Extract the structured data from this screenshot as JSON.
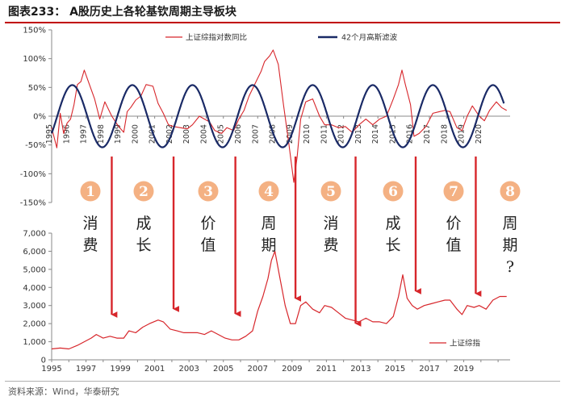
{
  "title": "图表233：  A股历史上各轮基钦周期主导板块",
  "source": "资料来源：Wind，华泰研究",
  "colors": {
    "red": "#d7262b",
    "navy": "#1a2a66",
    "badge": "#f4b183",
    "axis": "#888888"
  },
  "chart_data": [
    {
      "type": "line",
      "panel": "top",
      "y_unit": "%",
      "ylim": [
        -150,
        150
      ],
      "yticks": [
        150,
        100,
        50,
        0,
        -50,
        -100,
        -150
      ],
      "ytick_labels": [
        "150%",
        "100%",
        "50%",
        "0%",
        "-50%",
        "-100%",
        "-150%"
      ],
      "xlim": [
        1995,
        2021.7
      ],
      "xtick_labels": [
        "1995",
        "1996",
        "1997",
        "1998",
        "1999",
        "2000",
        "2001",
        "2002",
        "2003",
        "2004",
        "2005",
        "2006",
        "2007",
        "2008",
        "2009",
        "2010",
        "2011",
        "2012",
        "2013",
        "2014",
        "2015",
        "2016",
        "2017",
        "2018",
        "2019",
        "2020"
      ],
      "legend": [
        {
          "label": "上证综指对数同比",
          "color": "#d7262b",
          "style": "thin"
        },
        {
          "label": "42个月高斯滤波",
          "color": "#1a2a66",
          "style": "thick"
        }
      ],
      "series": [
        {
          "name": "上证综指对数同比",
          "x": [
            1995.0,
            1995.3,
            1995.5,
            1995.7,
            1995.9,
            1996.1,
            1996.3,
            1996.5,
            1996.7,
            1996.9,
            1997.2,
            1997.5,
            1997.8,
            1998.1,
            1998.5,
            1998.9,
            1999.2,
            1999.4,
            1999.6,
            1999.9,
            2000.2,
            2000.5,
            2000.9,
            2001.2,
            2001.5,
            2001.8,
            2002.1,
            2002.5,
            2002.9,
            2003.2,
            2003.6,
            2003.9,
            2004.2,
            2004.5,
            2004.9,
            2005.2,
            2005.6,
            2005.9,
            2006.2,
            2006.5,
            2006.9,
            2007.2,
            2007.4,
            2007.7,
            2007.9,
            2008.2,
            2008.5,
            2008.8,
            2009.1,
            2009.3,
            2009.5,
            2009.8,
            2010.2,
            2010.6,
            2010.9,
            2011.3,
            2011.7,
            2012.1,
            2012.5,
            2012.9,
            2013.3,
            2013.7,
            2014.1,
            2014.5,
            2014.9,
            2015.2,
            2015.4,
            2015.6,
            2015.9,
            2016.1,
            2016.4,
            2016.8,
            2017.2,
            2017.6,
            2017.9,
            2018.2,
            2018.6,
            2018.9,
            2019.2,
            2019.5,
            2019.9,
            2020.2,
            2020.5,
            2020.9,
            2021.2,
            2021.5
          ],
          "y": [
            -20,
            -55,
            5,
            -30,
            -12,
            -5,
            20,
            55,
            60,
            80,
            55,
            30,
            -5,
            25,
            0,
            -18,
            -28,
            8,
            15,
            28,
            35,
            55,
            52,
            22,
            5,
            -15,
            -18,
            -20,
            -22,
            -15,
            0,
            -5,
            -10,
            -25,
            -30,
            -20,
            -25,
            -5,
            10,
            35,
            60,
            78,
            95,
            105,
            115,
            90,
            20,
            -45,
            -115,
            -70,
            -5,
            25,
            30,
            0,
            -15,
            -15,
            -20,
            -18,
            -28,
            -15,
            -5,
            -15,
            -5,
            0,
            30,
            55,
            80,
            55,
            20,
            -35,
            -30,
            -18,
            5,
            8,
            10,
            8,
            -20,
            -25,
            0,
            18,
            0,
            -8,
            10,
            25,
            15,
            10
          ]
        },
        {
          "name": "42个月高斯滤波",
          "amplitude": 54,
          "period_years": 3.5,
          "phase_peak_year": 1999.7
        }
      ]
    },
    {
      "type": "line",
      "panel": "bottom",
      "ylim": [
        0,
        7000
      ],
      "yticks": [
        0,
        1000,
        2000,
        3000,
        4000,
        5000,
        6000,
        7000
      ],
      "ytick_labels": [
        "0",
        "1,000",
        "2,000",
        "3,000",
        "4,000",
        "5,000",
        "6,000",
        "7,000"
      ],
      "xlim": [
        1995,
        2021.7
      ],
      "xtick_labels": [
        "1995",
        "1997",
        "1999",
        "2001",
        "2003",
        "2005",
        "2007",
        "2009",
        "2011",
        "2013",
        "2015",
        "2017",
        "2019"
      ],
      "legend": [
        {
          "label": "上证综指",
          "color": "#d7262b"
        }
      ],
      "series": [
        {
          "name": "上证综指",
          "x": [
            1995.0,
            1995.5,
            1996.0,
            1996.5,
            1996.9,
            1997.3,
            1997.6,
            1998.0,
            1998.4,
            1998.8,
            1999.2,
            1999.5,
            1999.9,
            2000.3,
            2000.7,
            2001.2,
            2001.5,
            2001.9,
            2002.3,
            2002.7,
            2003.1,
            2003.5,
            2003.9,
            2004.3,
            2004.7,
            2005.1,
            2005.5,
            2005.9,
            2006.3,
            2006.7,
            2007.0,
            2007.3,
            2007.6,
            2007.8,
            2008.0,
            2008.3,
            2008.6,
            2008.9,
            2009.2,
            2009.5,
            2009.8,
            2010.2,
            2010.6,
            2010.9,
            2011.3,
            2011.7,
            2012.1,
            2012.5,
            2012.9,
            2013.3,
            2013.7,
            2014.1,
            2014.5,
            2014.9,
            2015.2,
            2015.45,
            2015.7,
            2016.0,
            2016.3,
            2016.7,
            2017.1,
            2017.5,
            2017.9,
            2018.2,
            2018.6,
            2018.9,
            2019.2,
            2019.6,
            2019.9,
            2020.3,
            2020.7,
            2021.1,
            2021.5
          ],
          "y": [
            600,
            650,
            600,
            800,
            1000,
            1200,
            1400,
            1200,
            1300,
            1200,
            1200,
            1600,
            1500,
            1800,
            2000,
            2200,
            2100,
            1700,
            1600,
            1500,
            1500,
            1500,
            1400,
            1600,
            1400,
            1200,
            1100,
            1100,
            1300,
            1600,
            2700,
            3500,
            4500,
            5500,
            6000,
            4500,
            3000,
            2000,
            2000,
            3000,
            3200,
            2800,
            2600,
            3000,
            2900,
            2600,
            2300,
            2200,
            2100,
            2300,
            2100,
            2100,
            2000,
            2400,
            3500,
            4700,
            3400,
            3000,
            2800,
            3000,
            3100,
            3200,
            3300,
            3300,
            2800,
            2500,
            3000,
            2900,
            3000,
            2800,
            3300,
            3500,
            3500
          ]
        }
      ]
    }
  ],
  "phases": [
    {
      "num": "1",
      "label": "消费",
      "arrow_year": 1998.5
    },
    {
      "num": "2",
      "label": "成长",
      "arrow_year": 2002.1
    },
    {
      "num": "3",
      "label": "价值",
      "arrow_year": 2005.7
    },
    {
      "num": "4",
      "label": "周期",
      "arrow_year": 2009.2
    },
    {
      "num": "5",
      "label": "消费",
      "arrow_year": 2012.7
    },
    {
      "num": "6",
      "label": "成长",
      "arrow_year": 2016.2
    },
    {
      "num": "7",
      "label": "价值",
      "arrow_year": 2019.7
    },
    {
      "num": "8",
      "label": "周期?",
      "arrow_year": null
    }
  ]
}
